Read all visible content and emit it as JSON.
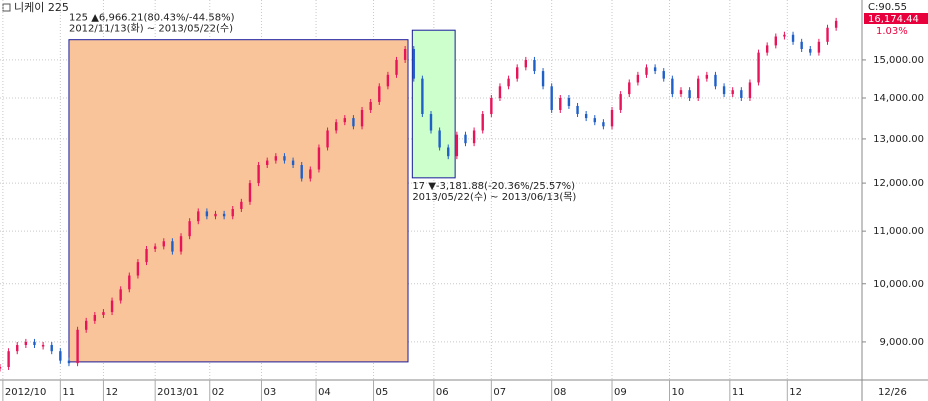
{
  "chart_data": {
    "type": "candlestick",
    "title": "니케이 225",
    "x": [
      0,
      3,
      6,
      9,
      12,
      15,
      18,
      21,
      24,
      27,
      30,
      33,
      36,
      39,
      42,
      45,
      48,
      51,
      54,
      57,
      60,
      63,
      66,
      69,
      72,
      75,
      78,
      81,
      84,
      87,
      90,
      93,
      96,
      99,
      102,
      105,
      108,
      111,
      114,
      117,
      120,
      123,
      126,
      129,
      132,
      135,
      138,
      141,
      144,
      147,
      150,
      153,
      156,
      159,
      162,
      165,
      168,
      171,
      174,
      177,
      180,
      183,
      186,
      189,
      192,
      195,
      198,
      201,
      204,
      207,
      210,
      213,
      216,
      219,
      222,
      225,
      228,
      231,
      234,
      237,
      240,
      243,
      246,
      249,
      252,
      255,
      258,
      261,
      264,
      267,
      270,
      273,
      276,
      279,
      282,
      285,
      288,
      291
    ],
    "values": [
      8600,
      8850,
      8950,
      9000,
      8950,
      8950,
      8850,
      8700,
      8660,
      9200,
      9350,
      9450,
      9500,
      9700,
      9900,
      10150,
      10400,
      10650,
      10700,
      10800,
      10600,
      10900,
      11200,
      11400,
      11300,
      11350,
      11300,
      11450,
      11600,
      12000,
      12400,
      12500,
      12600,
      12500,
      12400,
      12100,
      12300,
      12800,
      13200,
      13400,
      13500,
      13300,
      13700,
      13900,
      14300,
      14600,
      15000,
      15300,
      14500,
      13600,
      13200,
      12800,
      12600,
      13100,
      12900,
      13200,
      13600,
      14000,
      14300,
      14500,
      14800,
      15000,
      14700,
      14300,
      13700,
      14000,
      13800,
      13600,
      13500,
      13400,
      13300,
      13700,
      14100,
      14400,
      14600,
      14800,
      14700,
      14500,
      14100,
      14200,
      14000,
      14500,
      14600,
      14300,
      14100,
      14200,
      14000,
      14400,
      15200,
      15400,
      15650,
      15700,
      15500,
      15300,
      15200,
      15500,
      15900,
      16100
    ],
    "up_color": "#e8145a",
    "down_color": "#1f5fc8",
    "xlim": [
      0,
      300
    ],
    "xticks": [
      {
        "value": 1,
        "label": "2012/10"
      },
      {
        "value": 21,
        "label": "11"
      },
      {
        "value": 36,
        "label": "12"
      },
      {
        "value": 54,
        "label": "2013/01"
      },
      {
        "value": 73,
        "label": "02"
      },
      {
        "value": 91,
        "label": "03"
      },
      {
        "value": 110,
        "label": "04"
      },
      {
        "value": 130,
        "label": "05"
      },
      {
        "value": 151,
        "label": "06"
      },
      {
        "value": 171,
        "label": "07"
      },
      {
        "value": 192,
        "label": "08"
      },
      {
        "value": 213,
        "label": "09"
      },
      {
        "value": 233,
        "label": "10"
      },
      {
        "value": 254,
        "label": "11"
      },
      {
        "value": 274,
        "label": "12"
      }
    ],
    "ylim": [
      8400,
      16720
    ],
    "log_scale": true,
    "grid": true,
    "yticks": [
      {
        "value": 9000,
        "label": "9,000.00"
      },
      {
        "value": 10000,
        "label": "10,000.00"
      },
      {
        "value": 11000,
        "label": "11,000.00"
      },
      {
        "value": 12000,
        "label": "12,000.00"
      },
      {
        "value": 13000,
        "label": "13,000.00"
      },
      {
        "value": 14000,
        "label": "14,000.00"
      },
      {
        "value": 15000,
        "label": "15,000.00"
      }
    ],
    "last_date": "12/26",
    "change_label": "C:90.55",
    "last_price": "16,174.44",
    "last_change": "1.03%",
    "ranges": [
      {
        "x": [
          24,
          142
        ],
        "y": [
          8680,
          15560
        ],
        "color": "#f9c49a",
        "lines": [
          "125 ▲6,966.21(80.43%/-44.58%)",
          "2012/11/13(화) ~ 2013/05/22(수)"
        ],
        "label_pos": "above"
      },
      {
        "x": [
          143.5,
          158.4
        ],
        "y": [
          12115,
          15830
        ],
        "color": "#ccffcc",
        "lines": [
          "17 ▼-3,181.88(-20.36%/25.57%)",
          "2013/05/22(수) ~ 2013/06/13(목)"
        ],
        "label_pos": "below"
      }
    ]
  }
}
